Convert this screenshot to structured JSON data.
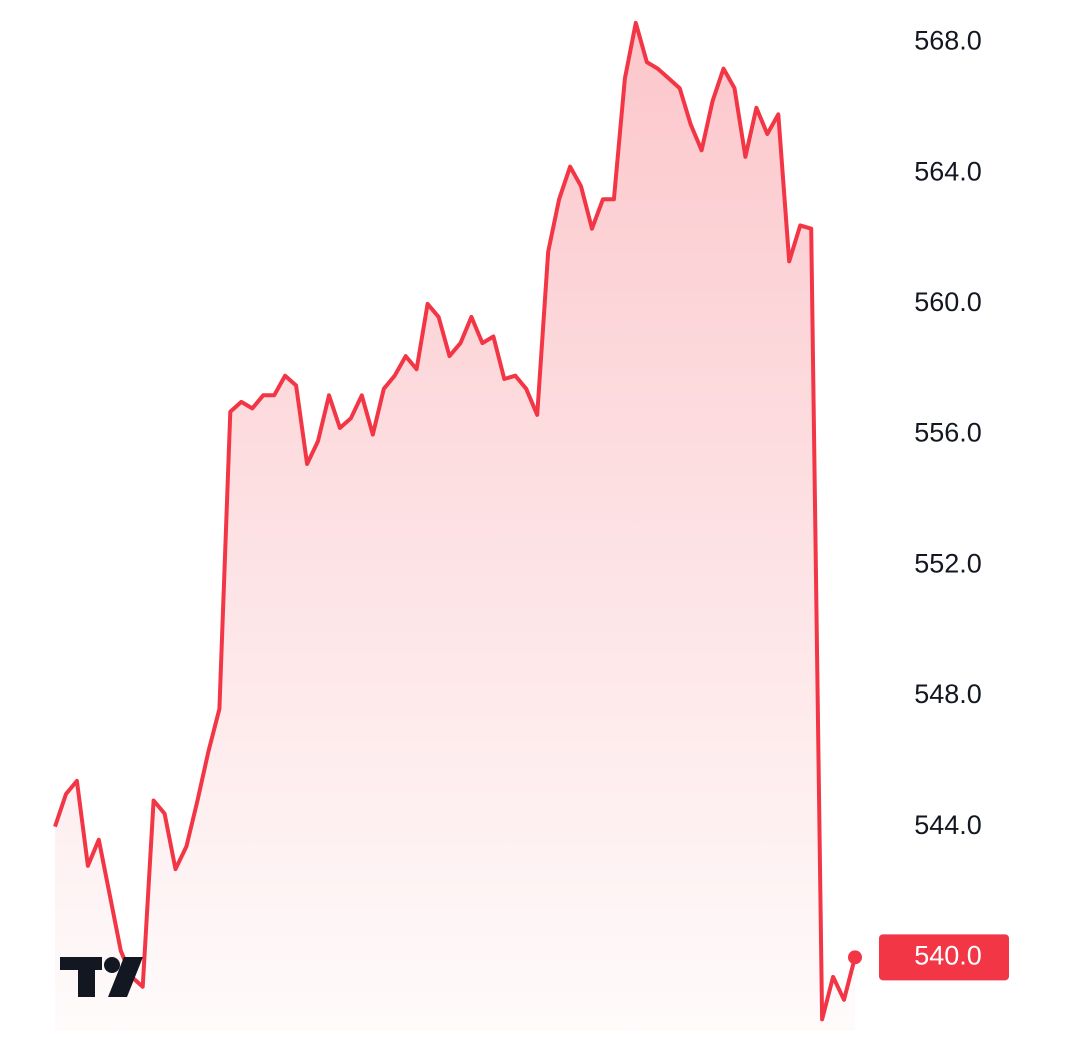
{
  "chart_data": {
    "type": "area",
    "color": "#f23645",
    "values": [
      544.0,
      545.0,
      545.4,
      542.8,
      543.6,
      541.9,
      540.2,
      539.4,
      539.1,
      544.8,
      544.4,
      542.7,
      543.4,
      544.8,
      546.3,
      547.6,
      556.7,
      557.0,
      556.8,
      557.2,
      557.2,
      557.8,
      557.5,
      555.1,
      555.8,
      557.2,
      556.2,
      556.5,
      557.2,
      556.0,
      557.4,
      557.8,
      558.4,
      558.0,
      560.0,
      559.6,
      558.4,
      558.8,
      559.6,
      558.8,
      559.0,
      557.7,
      557.8,
      557.4,
      556.6,
      561.6,
      563.2,
      564.2,
      563.6,
      562.3,
      563.2,
      563.2,
      566.9,
      568.6,
      567.4,
      567.2,
      566.9,
      566.6,
      565.5,
      564.7,
      566.2,
      567.2,
      566.6,
      564.5,
      566.0,
      565.2,
      565.8,
      561.3,
      562.4,
      562.3,
      538.1,
      539.4,
      538.7,
      540.0
    ],
    "ylim": [
      537.5,
      569.3
    ],
    "yticks": [
      {
        "value": 544,
        "label": "544.0"
      },
      {
        "value": 548,
        "label": "548.0"
      },
      {
        "value": 552,
        "label": "552.0"
      },
      {
        "value": 556,
        "label": "556.0"
      },
      {
        "value": 560,
        "label": "560.0"
      },
      {
        "value": 564,
        "label": "564.0"
      },
      {
        "value": 568,
        "label": "568.0"
      }
    ],
    "last_price_label": "540.0"
  }
}
